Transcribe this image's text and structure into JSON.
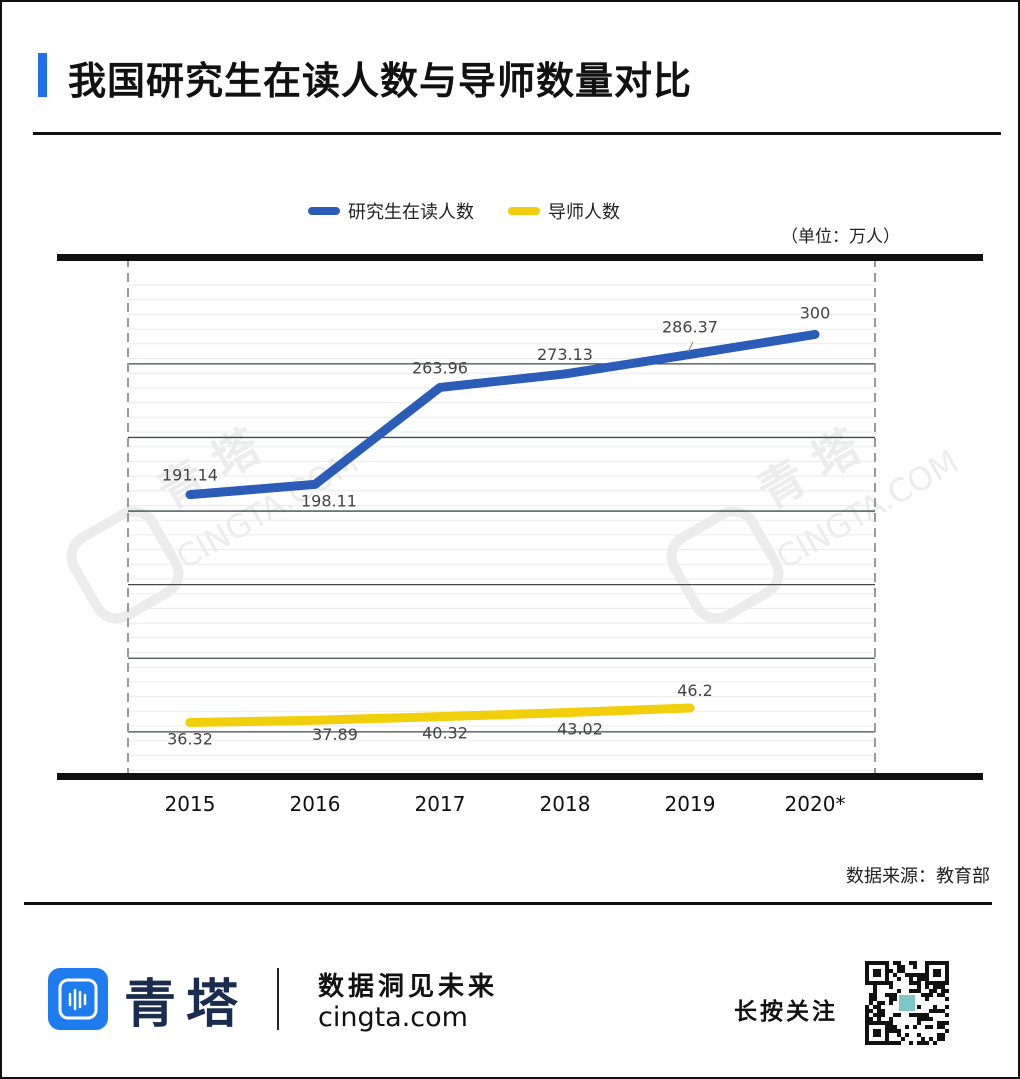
{
  "header": {
    "title": "我国研究生在读人数与导师数量对比"
  },
  "chart_data": {
    "type": "line",
    "categories": [
      "2015",
      "2016",
      "2017",
      "2018",
      "2019",
      "2020*"
    ],
    "series": [
      {
        "name": "研究生在读人数",
        "color": "#2b5cb8",
        "values": [
          191.14,
          198.11,
          263.96,
          273.13,
          286.37,
          300
        ]
      },
      {
        "name": "导师人数",
        "color": "#f2cf0c",
        "values": [
          36.32,
          37.89,
          40.32,
          43.02,
          46.2,
          null
        ]
      }
    ],
    "data_labels": [
      [
        "191.14",
        "198.11",
        "263.96",
        "273.13",
        "286.37",
        "300"
      ],
      [
        "36.32",
        "37.89",
        "40.32",
        "43.02",
        "46.2",
        ""
      ]
    ],
    "unit_label": "（单位：万人）",
    "ylim": [
      0,
      315
    ],
    "gridlines": [
      30,
      80,
      130,
      180,
      230,
      280
    ],
    "legend_position": "top-center"
  },
  "source": "数据来源：教育部",
  "footer": {
    "brand": "青塔",
    "slogan": "数据洞见未来",
    "url": "cingta.com",
    "follow": "长按关注"
  },
  "watermark": {
    "text_cn": "青 塔",
    "text_en": "CINGTA.COM"
  },
  "icons": {
    "logo": "cingta-logo-icon",
    "qr": "qr-code-icon"
  }
}
